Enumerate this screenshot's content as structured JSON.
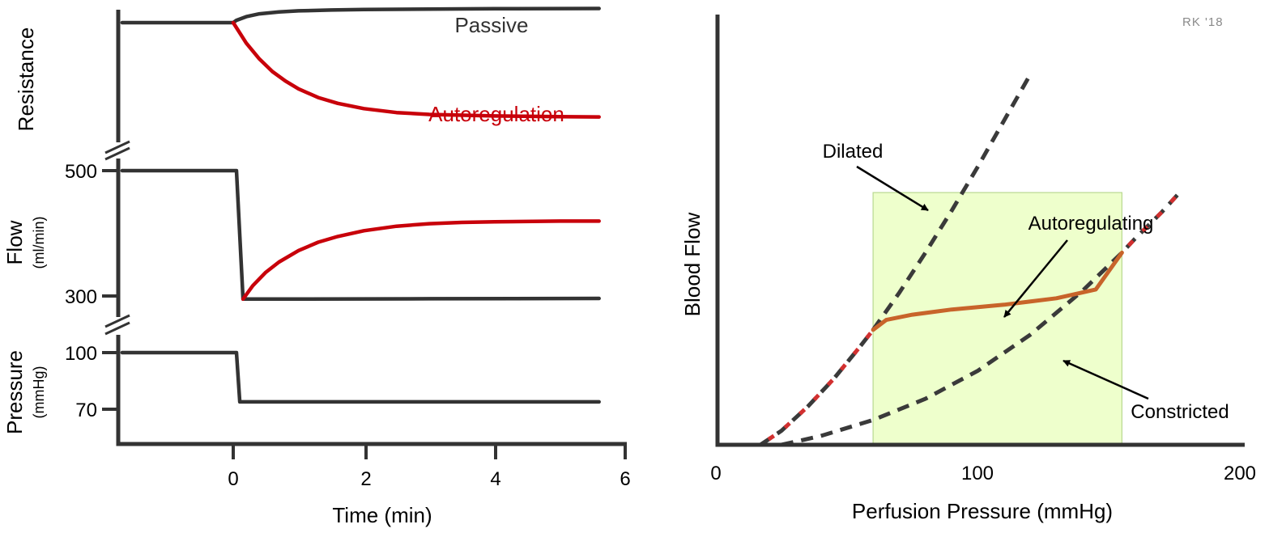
{
  "watermark": "RK '18",
  "colors": {
    "passive": "#333333",
    "autoregulation": "#c8000a",
    "dashed": "#3a3a3a",
    "autoregulating": "#c8642a",
    "red_overlay": "#d23030",
    "region_fill": "#eeffcc",
    "region_stroke": "#b8d890"
  },
  "chart_data": [
    {
      "type": "line",
      "panel": "time-course",
      "xlabel": "Time (min)",
      "xlim": [
        -1.7,
        6
      ],
      "xticks": [
        "0",
        "2",
        "4",
        "6"
      ],
      "subplots": [
        {
          "name": "resistance",
          "ylabel": "Resistance",
          "ylabel_unit": "",
          "ylim": [
            0,
            100
          ],
          "yticks": [],
          "series": [
            {
              "name": "Passive",
              "color": "#333333",
              "points": [
                [
                  -1.7,
                  80
                ],
                [
                  0.0,
                  80
                ],
                [
                  0.05,
                  81.5
                ],
                [
                  0.2,
                  83.8
                ],
                [
                  0.4,
                  85.6
                ],
                [
                  0.7,
                  86.8
                ],
                [
                  1.0,
                  87.5
                ],
                [
                  1.5,
                  88.0
                ],
                [
                  2.0,
                  88.3
                ],
                [
                  3.0,
                  88.6
                ],
                [
                  4.0,
                  88.8
                ],
                [
                  5.0,
                  88.9
                ],
                [
                  5.6,
                  89.0
                ]
              ]
            },
            {
              "name": "Autoregulation",
              "color": "#c8000a",
              "points": [
                [
                  0.0,
                  80
                ],
                [
                  0.2,
                  67
                ],
                [
                  0.4,
                  57
                ],
                [
                  0.6,
                  49
                ],
                [
                  0.8,
                  43
                ],
                [
                  1.0,
                  38
                ],
                [
                  1.3,
                  32.5
                ],
                [
                  1.6,
                  28.8
                ],
                [
                  2.0,
                  25.5
                ],
                [
                  2.5,
                  23
                ],
                [
                  3.0,
                  21.8
                ],
                [
                  4.0,
                  20.8
                ],
                [
                  5.0,
                  20.4
                ],
                [
                  5.6,
                  20.2
                ]
              ]
            }
          ]
        },
        {
          "name": "flow",
          "ylabel": "Flow",
          "ylabel_unit": "(ml/min)",
          "ylim": [
            270,
            520
          ],
          "yticks": [
            300,
            500
          ],
          "series": [
            {
              "name": "Passive",
              "color": "#333333",
              "points": [
                [
                  -1.7,
                  500
                ],
                [
                  0.05,
                  500
                ],
                [
                  0.15,
                  299
                ],
                [
                  1.0,
                  299
                ],
                [
                  3.0,
                  299.5
                ],
                [
                  5.6,
                  300
                ]
              ]
            },
            {
              "name": "Autoregulation",
              "color": "#c8000a",
              "points": [
                [
                  0.15,
                  299
                ],
                [
                  0.3,
                  320
                ],
                [
                  0.5,
                  341
                ],
                [
                  0.7,
                  357
                ],
                [
                  1.0,
                  375
                ],
                [
                  1.3,
                  388
                ],
                [
                  1.6,
                  397
                ],
                [
                  2.0,
                  406
                ],
                [
                  2.5,
                  413
                ],
                [
                  3.0,
                  417
                ],
                [
                  3.5,
                  419
                ],
                [
                  4.0,
                  420
                ],
                [
                  5.0,
                  421
                ],
                [
                  5.6,
                  421
                ]
              ]
            }
          ]
        },
        {
          "name": "pressure",
          "ylabel": "Pressure",
          "ylabel_unit": "(mmHg)",
          "ylim": [
            50,
            110
          ],
          "yticks": [
            70,
            100
          ],
          "series": [
            {
              "name": "Passive",
              "color": "#333333",
              "points": [
                [
                  -1.7,
                  100
                ],
                [
                  0.05,
                  100
                ],
                [
                  0.1,
                  71
                ],
                [
                  5.6,
                  71
                ]
              ]
            }
          ]
        }
      ],
      "labels": {
        "passive": "Passive",
        "autoregulation": "Autoregulation"
      }
    },
    {
      "type": "line",
      "panel": "autoregulation-curve",
      "xlabel": "Perfusion Pressure (mmHg)",
      "ylabel": "Blood Flow",
      "xlim": [
        0,
        200
      ],
      "ylim": [
        0,
        100
      ],
      "xticks": [
        "0",
        "100",
        "200"
      ],
      "yticks": [],
      "autoregulatory_range": {
        "x": [
          60,
          155
        ],
        "y": [
          0,
          63
        ]
      },
      "series": [
        {
          "name": "Dilated",
          "style": "dashed",
          "points": [
            [
              17,
              0
            ],
            [
              25,
              3.5
            ],
            [
              35,
              9.5
            ],
            [
              45,
              16.5
            ],
            [
              55,
              24.5
            ],
            [
              60,
              28.7
            ],
            [
              70,
              38
            ],
            [
              80,
              48
            ],
            [
              90,
              58.5
            ],
            [
              100,
              69.5
            ],
            [
              110,
              81
            ],
            [
              120,
              92.5
            ]
          ]
        },
        {
          "name": "Constricted",
          "style": "dashed",
          "points": [
            [
              25,
              0
            ],
            [
              40,
              2.2
            ],
            [
              60,
              6.2
            ],
            [
              80,
              11.5
            ],
            [
              100,
              18.5
            ],
            [
              120,
              27.5
            ],
            [
              140,
              38.5
            ],
            [
              155,
              48
            ],
            [
              160,
              51.5
            ],
            [
              170,
              58
            ],
            [
              177,
              63
            ]
          ]
        },
        {
          "name": "Autoregulating",
          "style": "solid",
          "points": [
            [
              60,
              28.7
            ],
            [
              65,
              31.2
            ],
            [
              75,
              32.5
            ],
            [
              90,
              33.8
            ],
            [
              110,
              35
            ],
            [
              130,
              36.6
            ],
            [
              145,
              38.8
            ],
            [
              155,
              48
            ]
          ]
        }
      ],
      "annotations": {
        "dilated": "Dilated",
        "autoregulating": "Autoregulating",
        "constricted": "Constricted"
      }
    }
  ]
}
